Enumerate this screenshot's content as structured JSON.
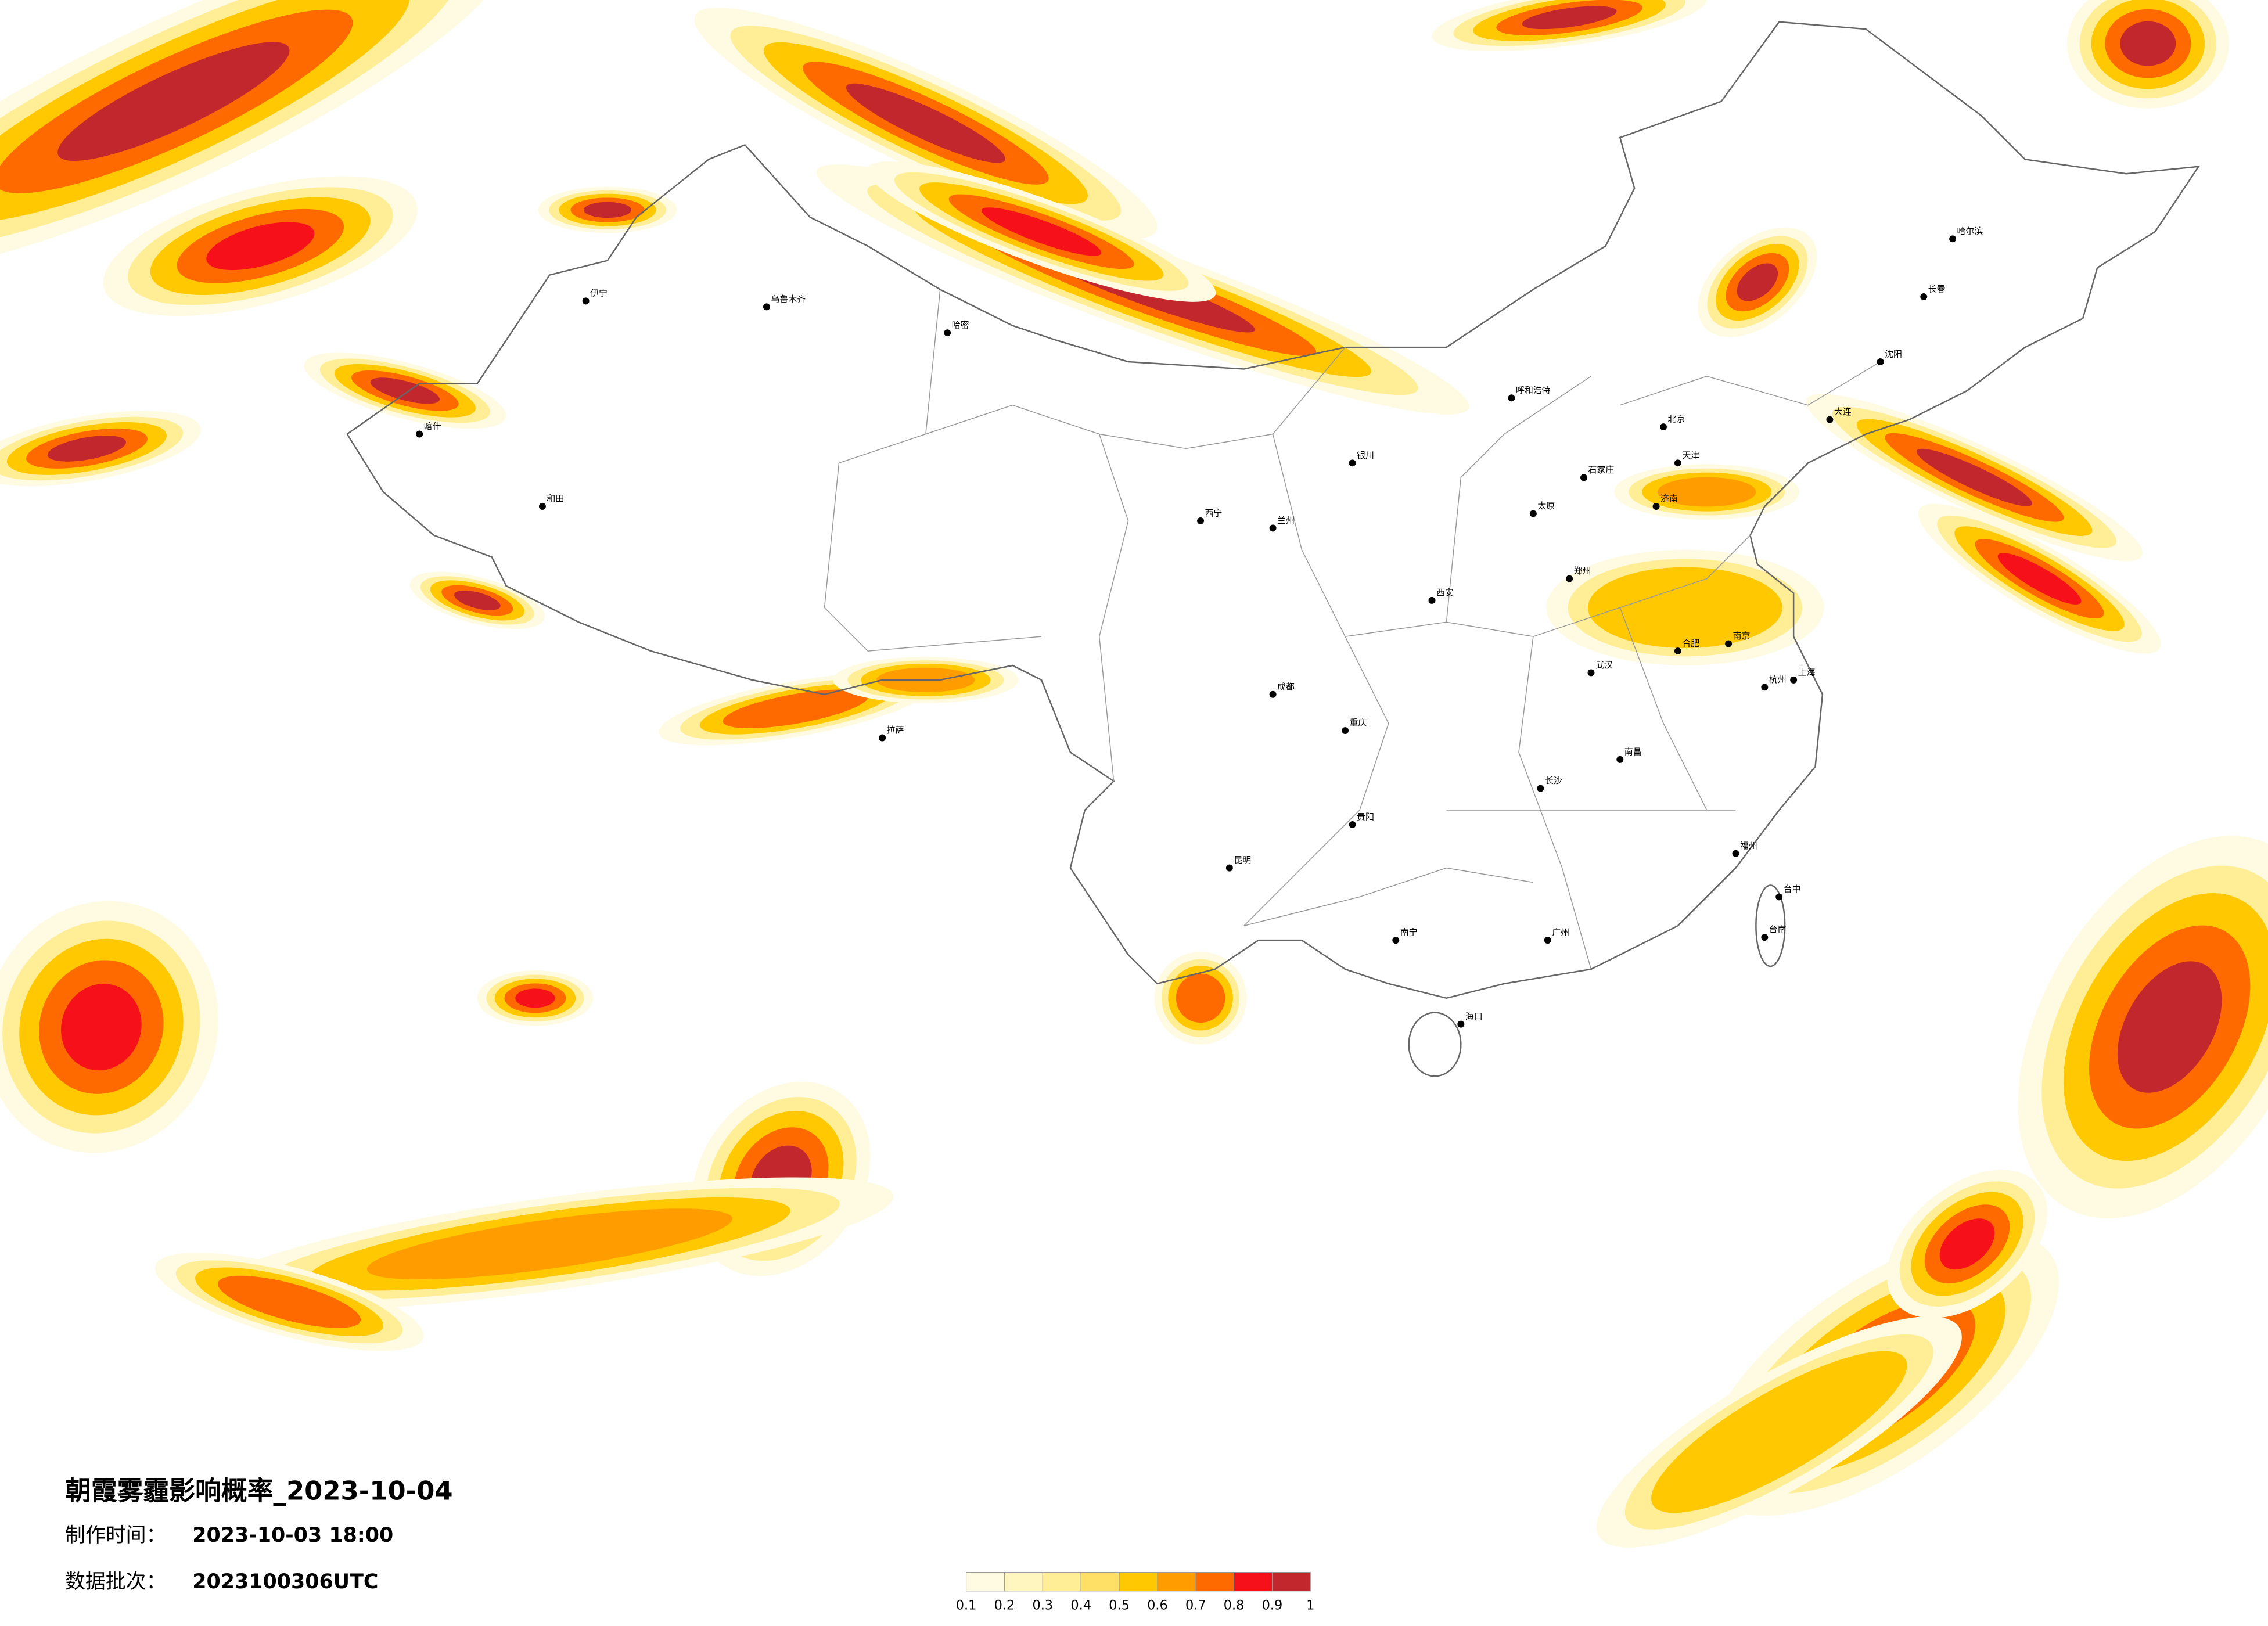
{
  "map": {
    "title": "朝霞雾霾影响概率_2023-10-04",
    "made_label": "制作时间：",
    "made_time": "2023-10-03 18:00",
    "batch_label": "数据批次：",
    "batch": "2023100306UTC",
    "legend": {
      "ticks": [
        0.1,
        0.2,
        0.3,
        0.4,
        0.5,
        0.6,
        0.7,
        0.8,
        0.9,
        1
      ],
      "colors": [
        "#fffbe3",
        "#fff6bf",
        "#ffee96",
        "#ffe066",
        "#ffc800",
        "#ff9c00",
        "#ff6a00",
        "#f5101a",
        "#c1272d"
      ]
    },
    "cities": [
      "哈尔滨",
      "长春",
      "沈阳",
      "大连",
      "呼和浩特",
      "石家庄",
      "太原",
      "济南",
      "郑州",
      "西安",
      "兰州",
      "西宁",
      "银川",
      "乌鲁木齐",
      "拉萨",
      "成都",
      "重庆",
      "武汉",
      "长沙",
      "南京",
      "合肥",
      "杭州",
      "南昌",
      "福州",
      "广州",
      "南宁",
      "贵阳",
      "昆明",
      "海口",
      "喀什",
      "和田",
      "伊宁",
      "哈密",
      "北京",
      "天津",
      "上海",
      "台中",
      "台南"
    ]
  }
}
